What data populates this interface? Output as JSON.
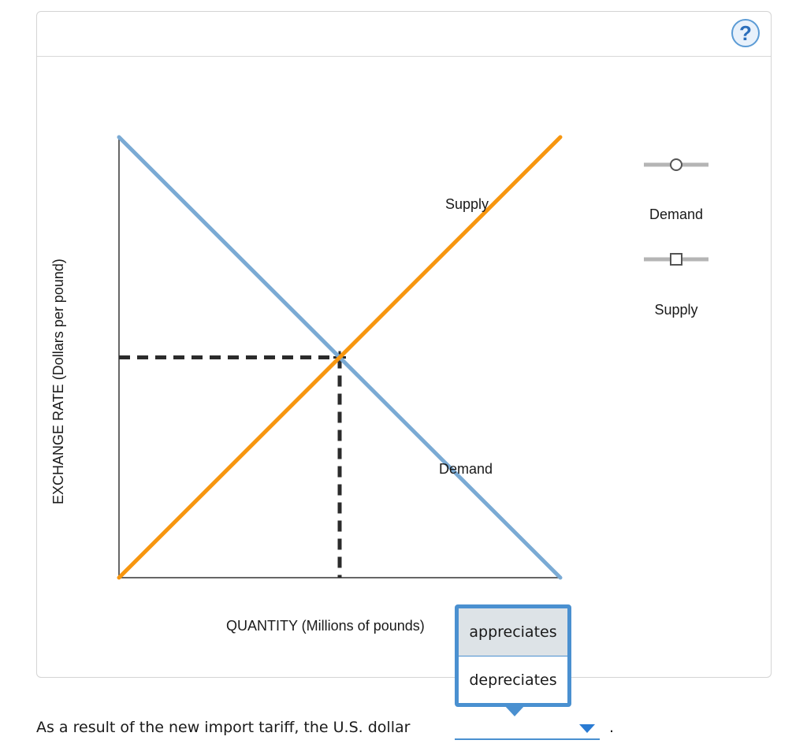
{
  "help_icon": "?",
  "chart_data": {
    "type": "line",
    "xlabel": "QUANTITY (Millions of pounds)",
    "ylabel": "EXCHANGE RATE (Dollars per pound)",
    "xlim": [
      0,
      100
    ],
    "ylim": [
      0,
      100
    ],
    "series": [
      {
        "name": "Demand",
        "color": "#7aaad4",
        "points": [
          [
            0,
            100
          ],
          [
            100,
            0
          ]
        ],
        "label": "Demand"
      },
      {
        "name": "Supply",
        "color": "#f7960f",
        "points": [
          [
            0,
            0
          ],
          [
            100,
            100
          ]
        ],
        "label": "Supply"
      }
    ],
    "equilibrium": {
      "x": 50,
      "y": 50
    }
  },
  "legend": {
    "demand_label": "Demand",
    "supply_label": "Supply"
  },
  "dropdown": {
    "options": [
      "appreciates",
      "depreciates"
    ]
  },
  "question": {
    "sentence": "As a result of the new import tariff, the U.S. dollar",
    "selected": "",
    "period": "."
  },
  "colors": {
    "demand": "#7aaad4",
    "supply": "#f7960f",
    "accent": "#4a90d0"
  }
}
